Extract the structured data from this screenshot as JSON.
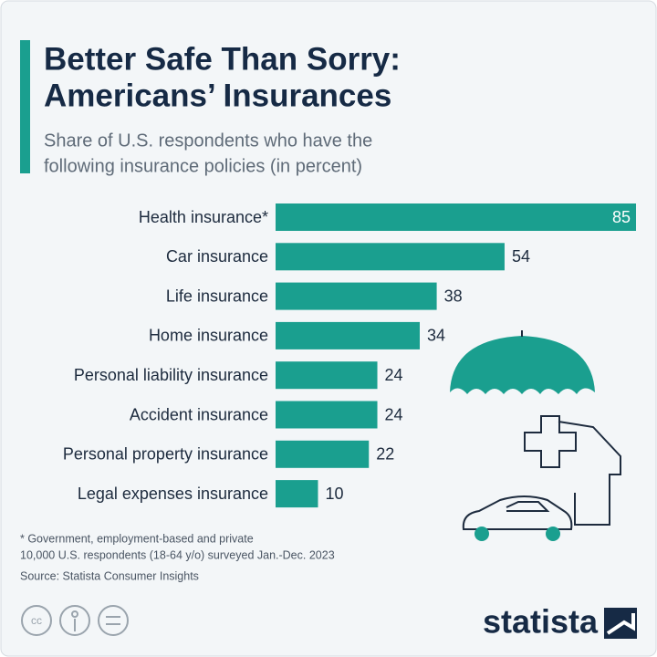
{
  "chart_data": {
    "type": "bar",
    "orientation": "horizontal",
    "title": [
      "Better Safe Than Sorry:",
      "Americans’ Insurances"
    ],
    "subtitle": [
      "Share of U.S. respondents who have the",
      "following insurance policies (in percent)"
    ],
    "categories": [
      "Health insurance*",
      "Car insurance",
      "Life insurance",
      "Home insurance",
      "Personal liability insurance",
      "Accident insurance",
      "Personal property insurance",
      "Legal expenses insurance"
    ],
    "values": [
      85,
      54,
      38,
      34,
      24,
      24,
      22,
      10
    ],
    "color": "#1a9f8f",
    "notes": [
      "* Government, employment-based and private",
      "10,000 U.S. respondents (18-64 y/o) surveyed Jan.-Dec. 2023"
    ],
    "source": "Source: Statista Consumer Insights",
    "brand": "statista"
  }
}
